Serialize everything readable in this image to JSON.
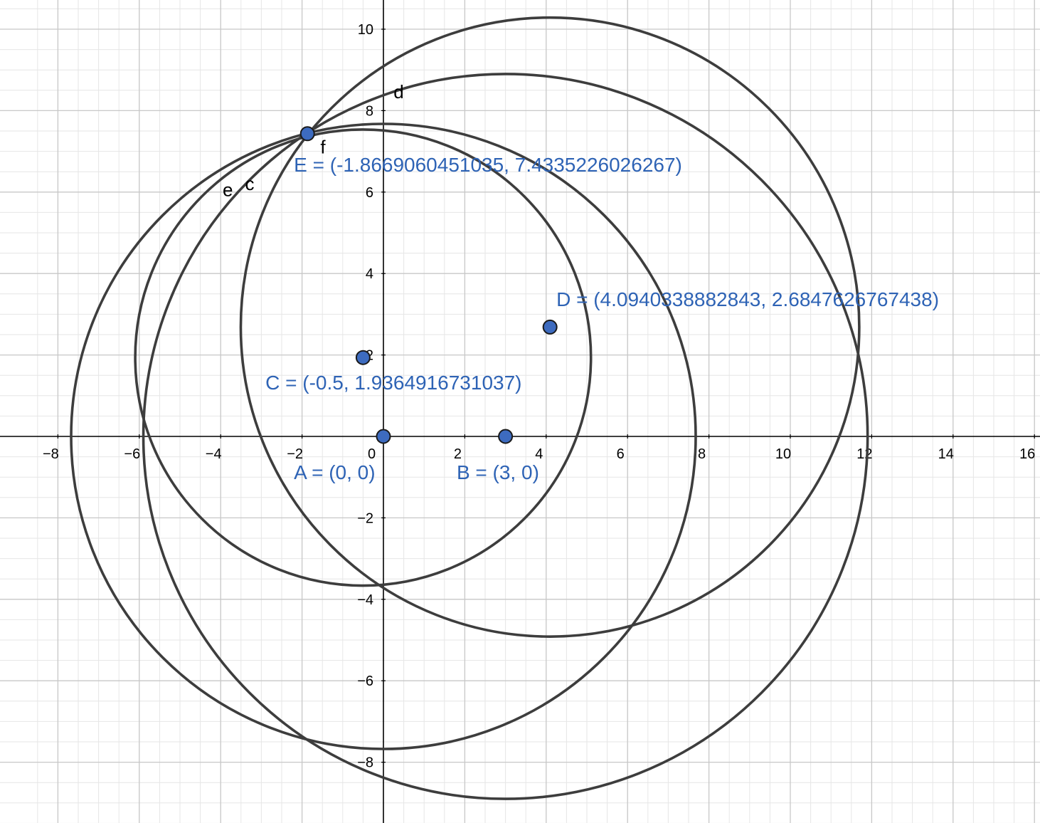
{
  "colors": {
    "background": "#ffffff",
    "minor_grid": "#e6e6e6",
    "major_grid": "#c8c8c8",
    "axis": "#000000",
    "curve": "#3d3d3d",
    "point_fill": "#3d6bbf",
    "point_stroke": "#1a1a1a",
    "point_label": "#2e63b5"
  },
  "axes": {
    "x_range": [
      -8.65,
      16.0
    ],
    "y_range": [
      -9.55,
      10.55
    ],
    "major_step": 2,
    "minor_step": 0.5,
    "x_ticks": [
      {
        "v": -8,
        "t": "−8"
      },
      {
        "v": -6,
        "t": "−6"
      },
      {
        "v": -4,
        "t": "−4"
      },
      {
        "v": -2,
        "t": "−2"
      },
      {
        "v": 0,
        "t": "0"
      },
      {
        "v": 2,
        "t": "2"
      },
      {
        "v": 4,
        "t": "4"
      },
      {
        "v": 6,
        "t": "6"
      },
      {
        "v": 8,
        "t": "8"
      },
      {
        "v": 10,
        "t": "10"
      },
      {
        "v": 12,
        "t": "12"
      },
      {
        "v": 14,
        "t": "14"
      },
      {
        "v": 16,
        "t": "16"
      }
    ],
    "y_ticks": [
      {
        "v": 10,
        "t": "10"
      },
      {
        "v": 8,
        "t": "8"
      },
      {
        "v": 6,
        "t": "6"
      },
      {
        "v": 4,
        "t": "4"
      },
      {
        "v": 2,
        "t": "2"
      },
      {
        "v": -2,
        "t": "−2"
      },
      {
        "v": -4,
        "t": "−4"
      },
      {
        "v": -6,
        "t": "−6"
      },
      {
        "v": -8,
        "t": "−8"
      }
    ]
  },
  "circles": [
    {
      "name": "circle-c",
      "cx": -0.5,
      "cy": 1.9365,
      "r": 5.6
    },
    {
      "name": "circle-d",
      "cx": 3.0,
      "cy": 0.0,
      "r": 8.9
    },
    {
      "name": "circle-e",
      "cx": 0.0,
      "cy": 0.0,
      "r": 7.675
    },
    {
      "name": "circle-f",
      "cx": 4.094,
      "cy": 2.6848,
      "r": 7.6
    }
  ],
  "curve_labels": [
    {
      "name": "curve-label-d",
      "text": "d",
      "x": 0.25,
      "y": 8.3
    },
    {
      "name": "curve-label-f",
      "text": "f",
      "x": -1.55,
      "y": 6.95
    },
    {
      "name": "curve-label-e",
      "text": "e",
      "x": -3.95,
      "y": 5.9
    },
    {
      "name": "curve-label-c",
      "text": "c",
      "x": -3.4,
      "y": 6.05
    }
  ],
  "points": [
    {
      "name": "point-a",
      "x": 0,
      "y": 0,
      "label": "A = (0, 0)",
      "lx": -2.2,
      "ly": -1.05
    },
    {
      "name": "point-b",
      "x": 3,
      "y": 0,
      "label": "B = (3, 0)",
      "lx": 1.8,
      "ly": -1.05
    },
    {
      "name": "point-c",
      "x": -0.5,
      "y": 1.9364916731037,
      "label": "C = (-0.5, 1.9364916731037)",
      "lx": -2.9,
      "ly": 1.15
    },
    {
      "name": "point-d",
      "x": 4.0940338882843,
      "y": 2.6847626767438,
      "label": "D = (4.0940338882843, 2.6847626767438)",
      "lx": 4.25,
      "ly": 3.2
    },
    {
      "name": "point-e",
      "x": -1.8669060451035,
      "y": 7.4335226026267,
      "label": "E = (-1.8669060451035, 7.4335226026267)",
      "lx": -2.2,
      "ly": 6.5
    }
  ]
}
